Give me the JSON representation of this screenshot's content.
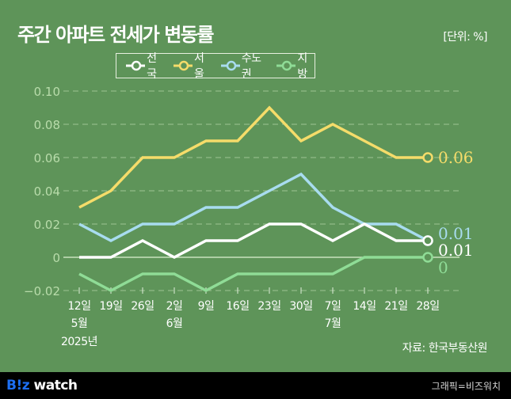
{
  "header": {
    "title": "주간 아파트 전세가 변동률",
    "unit": "[단위: %]"
  },
  "legend": [
    {
      "label": "전국",
      "color": "#ffffff"
    },
    {
      "label": "서울",
      "color": "#f5dc6a"
    },
    {
      "label": "수도권",
      "color": "#a8dcef"
    },
    {
      "label": "지방",
      "color": "#8fdc96"
    }
  ],
  "chart_data": {
    "type": "line",
    "title": "주간 아파트 전세가 변동률",
    "unit": "%",
    "xlabel": "",
    "ylabel": "",
    "ylim": [
      -0.02,
      0.1
    ],
    "yticks": [
      -0.02,
      0,
      0.02,
      0.04,
      0.06,
      0.08,
      0.1
    ],
    "ytick_labels": [
      "−0.02",
      "0",
      "0.02",
      "0.04",
      "0.06",
      "0.08",
      "0.10"
    ],
    "grid": "horizontal-dashed",
    "legend_position": "top-center",
    "x": [
      "2025-05-12",
      "2025-05-19",
      "2025-05-26",
      "2025-06-02",
      "2025-06-09",
      "2025-06-16",
      "2025-06-23",
      "2025-06-30",
      "2025-07-07",
      "2025-07-14",
      "2025-07-21",
      "2025-07-28"
    ],
    "xtick_labels": [
      "12일",
      "19일",
      "26일",
      "2일",
      "9일",
      "16일",
      "23일",
      "30일",
      "7일",
      "14일",
      "21일",
      "28일"
    ],
    "month_labels": [
      {
        "index": 0,
        "label": "5월"
      },
      {
        "index": 3,
        "label": "6월"
      },
      {
        "index": 8,
        "label": "7월"
      }
    ],
    "year_label": {
      "index": 0,
      "label": "2025년"
    },
    "series": [
      {
        "name": "전국",
        "color": "#ffffff",
        "values": [
          0,
          0,
          0.01,
          0,
          0.01,
          0.01,
          0.02,
          0.02,
          0.01,
          0.02,
          0.01,
          0.01
        ],
        "end_label": "0.01"
      },
      {
        "name": "서울",
        "color": "#f5dc6a",
        "values": [
          0.03,
          0.04,
          0.06,
          0.06,
          0.07,
          0.07,
          0.09,
          0.07,
          0.08,
          0.07,
          0.06,
          0.06
        ],
        "end_label": "0.06"
      },
      {
        "name": "수도권",
        "color": "#a8dcef",
        "values": [
          0.02,
          0.01,
          0.02,
          0.02,
          0.03,
          0.03,
          0.04,
          0.05,
          0.03,
          0.02,
          0.02,
          0.01
        ],
        "end_label": "0.01"
      },
      {
        "name": "지방",
        "color": "#8fdc96",
        "values": [
          -0.01,
          -0.02,
          -0.01,
          -0.01,
          -0.02,
          -0.01,
          -0.01,
          -0.01,
          -0.01,
          0,
          0,
          0
        ],
        "end_label": "0"
      }
    ]
  },
  "source": "자료: 한국부동산원",
  "footer": {
    "logo_biz": "B!z",
    "logo_watch": "watch",
    "credit": "그래픽=비즈워치"
  }
}
